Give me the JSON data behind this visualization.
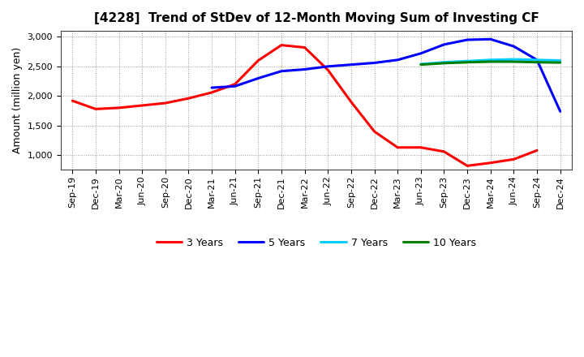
{
  "title": "[4228]  Trend of StDev of 12-Month Moving Sum of Investing CF",
  "ylabel": "Amount (million yen)",
  "background_color": "#ffffff",
  "grid_color": "#999999",
  "x_labels": [
    "Sep-19",
    "Dec-19",
    "Mar-20",
    "Jun-20",
    "Sep-20",
    "Dec-20",
    "Mar-21",
    "Jun-21",
    "Sep-21",
    "Dec-21",
    "Mar-22",
    "Jun-22",
    "Sep-22",
    "Dec-22",
    "Mar-23",
    "Jun-23",
    "Sep-23",
    "Dec-23",
    "Mar-24",
    "Jun-24",
    "Sep-24",
    "Dec-24"
  ],
  "series": {
    "3 Years": {
      "color": "#ff0000",
      "data_x": [
        0,
        1,
        2,
        3,
        4,
        5,
        6,
        7,
        8,
        9,
        10,
        11,
        12,
        13,
        14,
        15,
        16,
        17,
        18,
        19,
        20
      ],
      "data_y": [
        1920,
        1780,
        1800,
        1840,
        1880,
        1960,
        2060,
        2200,
        2600,
        2860,
        2820,
        2440,
        1900,
        1400,
        1130,
        1130,
        1060,
        820,
        870,
        930,
        1080
      ]
    },
    "5 Years": {
      "color": "#0000ff",
      "data_x": [
        6,
        7,
        8,
        9,
        10,
        11,
        12,
        13,
        14,
        15,
        16,
        17,
        18,
        19,
        20,
        21
      ],
      "data_y": [
        2140,
        2165,
        2300,
        2420,
        2450,
        2500,
        2530,
        2560,
        2610,
        2720,
        2870,
        2950,
        2960,
        2840,
        2610,
        1740
      ]
    },
    "7 Years": {
      "color": "#00ccff",
      "data_x": [
        15,
        16,
        17,
        18,
        19,
        20,
        21
      ],
      "data_y": [
        2540,
        2570,
        2590,
        2610,
        2620,
        2610,
        2600
      ]
    },
    "10 Years": {
      "color": "#008000",
      "data_x": [
        15,
        16,
        17,
        18,
        19,
        20,
        21
      ],
      "data_y": [
        2530,
        2555,
        2570,
        2580,
        2580,
        2570,
        2565
      ]
    }
  },
  "ylim": [
    750,
    3100
  ],
  "yticks": [
    1000,
    1500,
    2000,
    2500,
    3000
  ],
  "title_fontsize": 11,
  "axis_fontsize": 9,
  "tick_fontsize": 8,
  "legend_fontsize": 9
}
